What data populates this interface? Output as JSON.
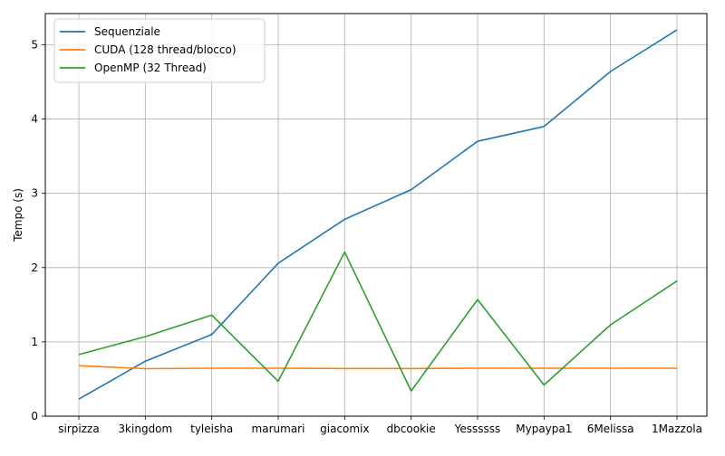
{
  "chart_data": {
    "type": "line",
    "title": "",
    "xlabel": "",
    "ylabel": "Tempo (s)",
    "categories": [
      "sirpizza",
      "3kingdom",
      "tyleisha",
      "marumari",
      "giacomix",
      "dbcookie",
      "Yessssss",
      "Mypaypa1",
      "6Melissa",
      "1Mazzola"
    ],
    "ylim": [
      0,
      5.42
    ],
    "yticks": [
      0,
      1,
      2,
      3,
      4,
      5
    ],
    "grid": true,
    "legend_position": "upper-left",
    "series": [
      {
        "name": "Sequenziale",
        "color": "#1f77b4",
        "values": [
          0.23,
          0.74,
          1.1,
          2.06,
          2.65,
          3.05,
          3.7,
          3.9,
          4.64,
          5.2
        ]
      },
      {
        "name": "CUDA (128 thread/blocco)",
        "color": "#ff7f0e",
        "values": [
          0.68,
          0.64,
          0.645,
          0.645,
          0.642,
          0.642,
          0.645,
          0.645,
          0.645,
          0.645
        ]
      },
      {
        "name": "OpenMP (32 Thread)",
        "color": "#2ca02c",
        "values": [
          0.83,
          1.07,
          1.36,
          0.47,
          2.21,
          0.34,
          1.57,
          0.42,
          1.23,
          1.82
        ]
      }
    ]
  }
}
